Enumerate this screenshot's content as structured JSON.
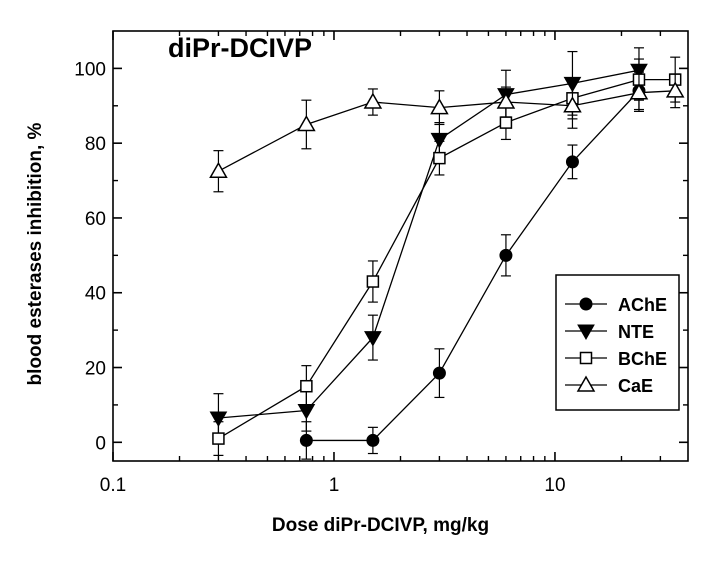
{
  "chart_data": {
    "type": "line",
    "title": "diPr-DCIVP",
    "xlabel": "Dose diPr-DCIVP, mg/kg",
    "ylabel": "blood esterases inhibition, %",
    "x_scale": "log",
    "xlim": [
      0.1,
      40
    ],
    "ylim": [
      -5,
      110
    ],
    "x_ticks": [
      0.1,
      1,
      10
    ],
    "x_tick_labels": [
      "0.1",
      "1",
      "10"
    ],
    "y_ticks": [
      0,
      20,
      40,
      60,
      80,
      100
    ],
    "y_tick_labels": [
      "0",
      "20",
      "40",
      "60",
      "80",
      "100"
    ],
    "grid": false,
    "legend_position": "lower-right",
    "series": [
      {
        "name": "AChE",
        "marker": "filled-circle",
        "x": [
          0.75,
          1.5,
          3,
          6,
          12,
          24
        ],
        "y": [
          0.5,
          0.5,
          18.5,
          50,
          75,
          94
        ],
        "err": [
          5,
          3.5,
          6.5,
          5.5,
          4.5,
          5
        ]
      },
      {
        "name": "NTE",
        "marker": "filled-triangle-down",
        "x": [
          0.3,
          0.75,
          1.5,
          3,
          6,
          12,
          24
        ],
        "y": [
          6.5,
          8.5,
          28,
          81,
          93,
          96,
          99.5
        ],
        "err": [
          6.5,
          5.5,
          6,
          4.5,
          6.5,
          8.5,
          6
        ]
      },
      {
        "name": "BChE",
        "marker": "open-square",
        "x": [
          0.3,
          0.75,
          1.5,
          3,
          6,
          12,
          24,
          35
        ],
        "y": [
          1,
          15,
          43,
          76,
          85.5,
          92,
          97,
          97
        ],
        "err": [
          4.5,
          5.5,
          5.5,
          4.5,
          4.5,
          5.5,
          5.5,
          6
        ]
      },
      {
        "name": "CaE",
        "marker": "open-triangle-up",
        "x": [
          0.3,
          0.75,
          1.5,
          3,
          6,
          12,
          24,
          35
        ],
        "y": [
          72.5,
          85,
          91,
          89.5,
          91,
          90,
          93.5,
          94
        ],
        "err": [
          5.5,
          6.5,
          3.5,
          4.5,
          4,
          6,
          5,
          4.5
        ]
      }
    ]
  }
}
